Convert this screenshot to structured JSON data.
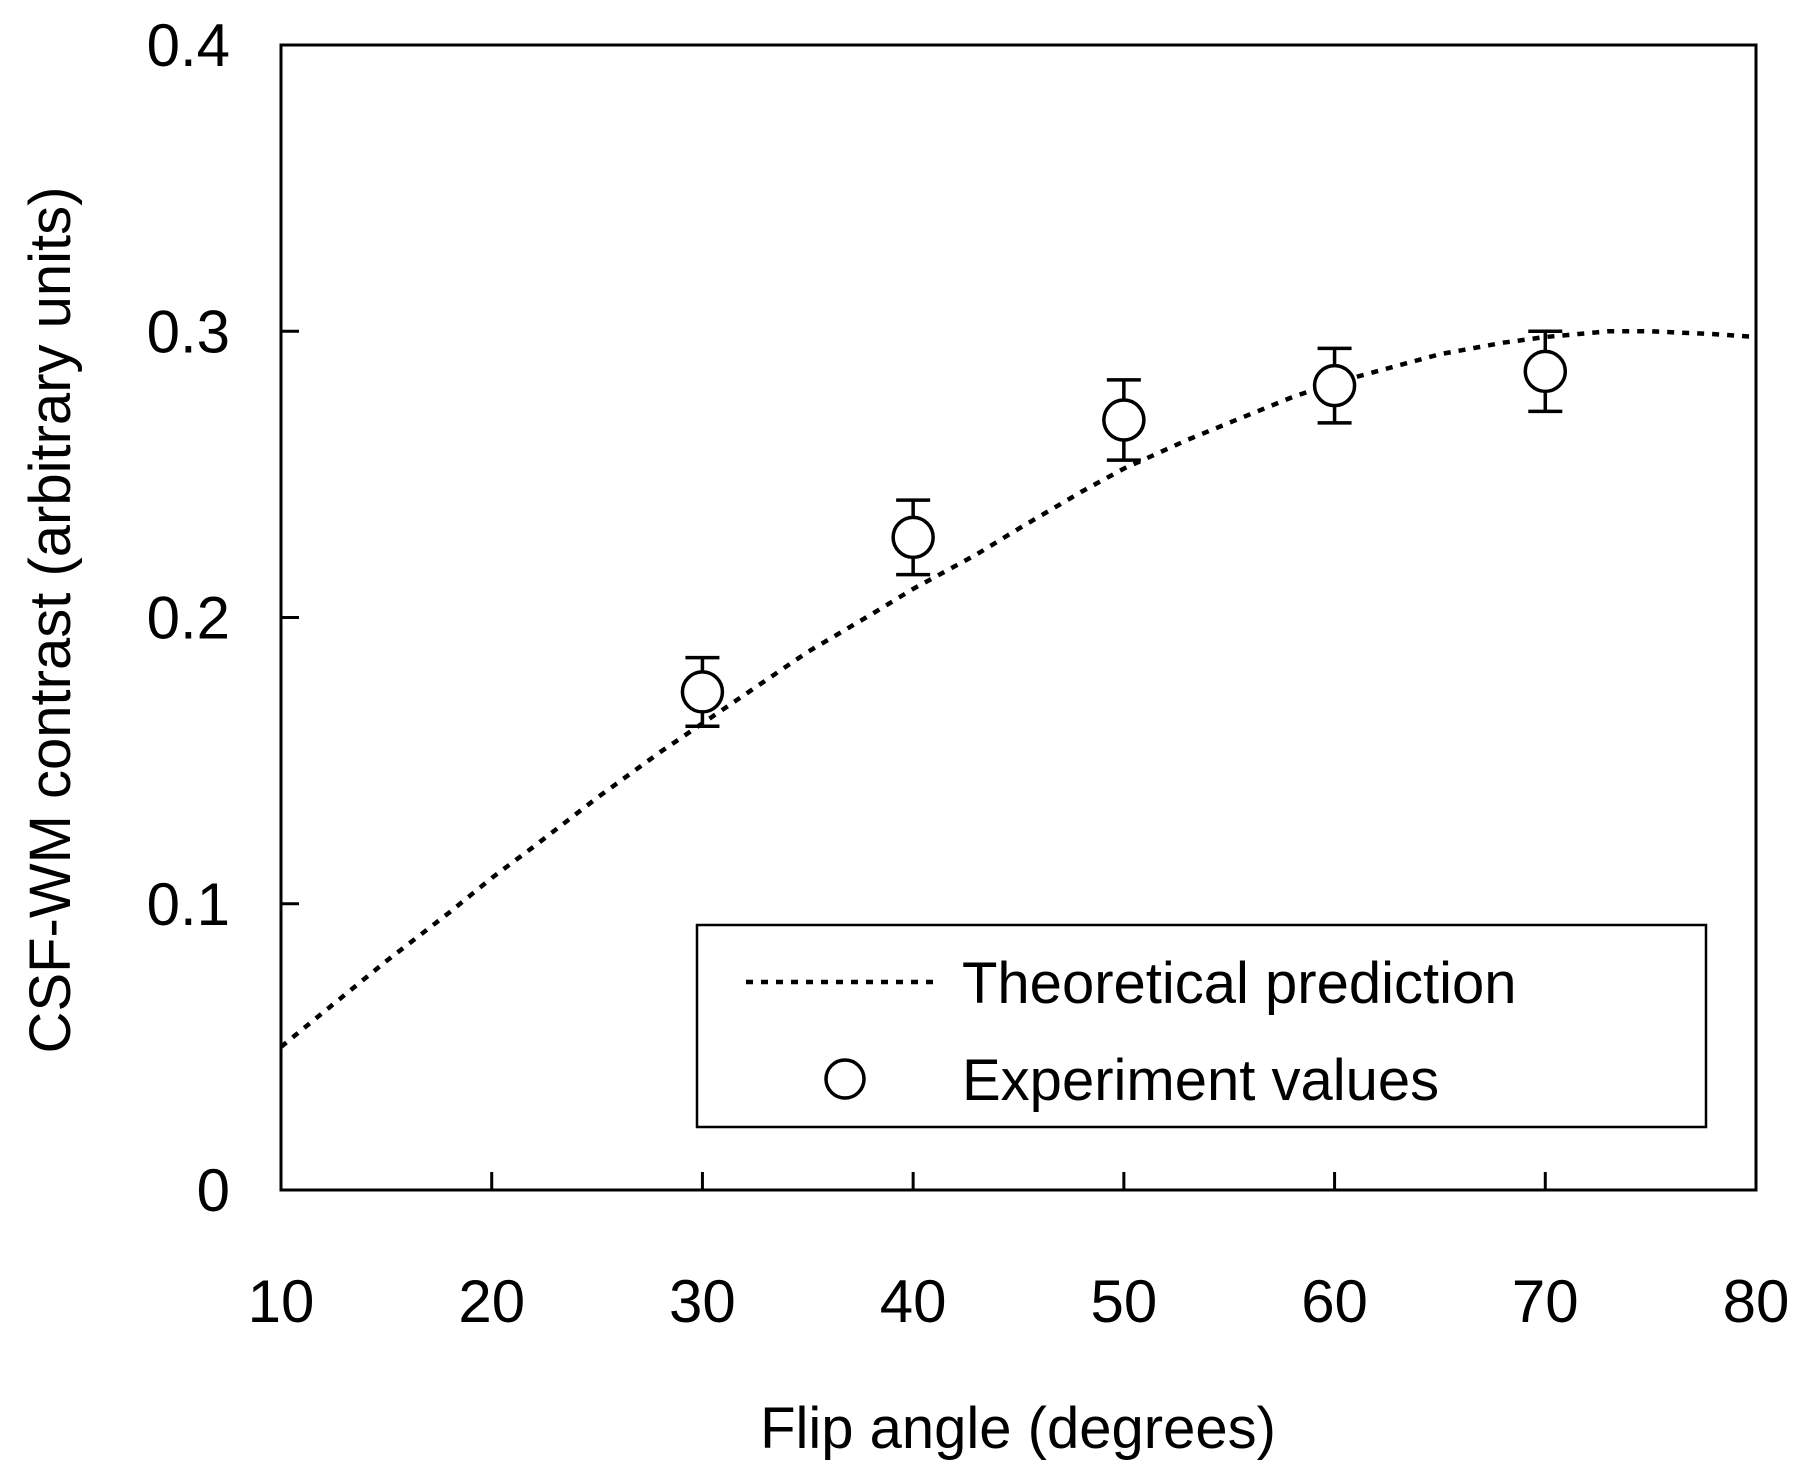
{
  "chart_data": {
    "type": "scatter",
    "title": "",
    "xlabel": "Flip angle (degrees)",
    "ylabel": "CSF-WM contrast (arbitrary units)",
    "xlim": [
      10,
      80
    ],
    "ylim": [
      0,
      0.4
    ],
    "x_ticks": [
      "10",
      "20",
      "30",
      "40",
      "50",
      "60",
      "70",
      "80"
    ],
    "y_ticks": [
      "0",
      "0.1",
      "0.2",
      "0.3",
      "0.4"
    ],
    "grid": false,
    "legend_position": "bottom-right",
    "series": [
      {
        "name": "Theoretical prediction",
        "style": "dotted-line",
        "color": "#000000",
        "x": [
          10,
          12,
          15,
          18,
          20,
          22,
          25,
          28,
          30,
          33,
          35,
          38,
          40,
          43,
          45,
          48,
          50,
          53,
          55,
          58,
          60,
          63,
          65,
          68,
          70,
          73,
          75,
          78,
          80
        ],
        "y": [
          0.05,
          0.062,
          0.08,
          0.097,
          0.109,
          0.12,
          0.137,
          0.153,
          0.163,
          0.178,
          0.188,
          0.201,
          0.21,
          0.222,
          0.231,
          0.244,
          0.252,
          0.262,
          0.268,
          0.277,
          0.282,
          0.288,
          0.292,
          0.296,
          0.298,
          0.3,
          0.3,
          0.299,
          0.298
        ]
      },
      {
        "name": "Experiment values",
        "style": "open-circle-markers",
        "color": "#000000",
        "x": [
          30,
          40,
          50,
          60,
          70
        ],
        "y": [
          0.174,
          0.228,
          0.269,
          0.281,
          0.286
        ],
        "y_error": [
          0.012,
          0.013,
          0.014,
          0.013,
          0.014
        ]
      }
    ]
  }
}
